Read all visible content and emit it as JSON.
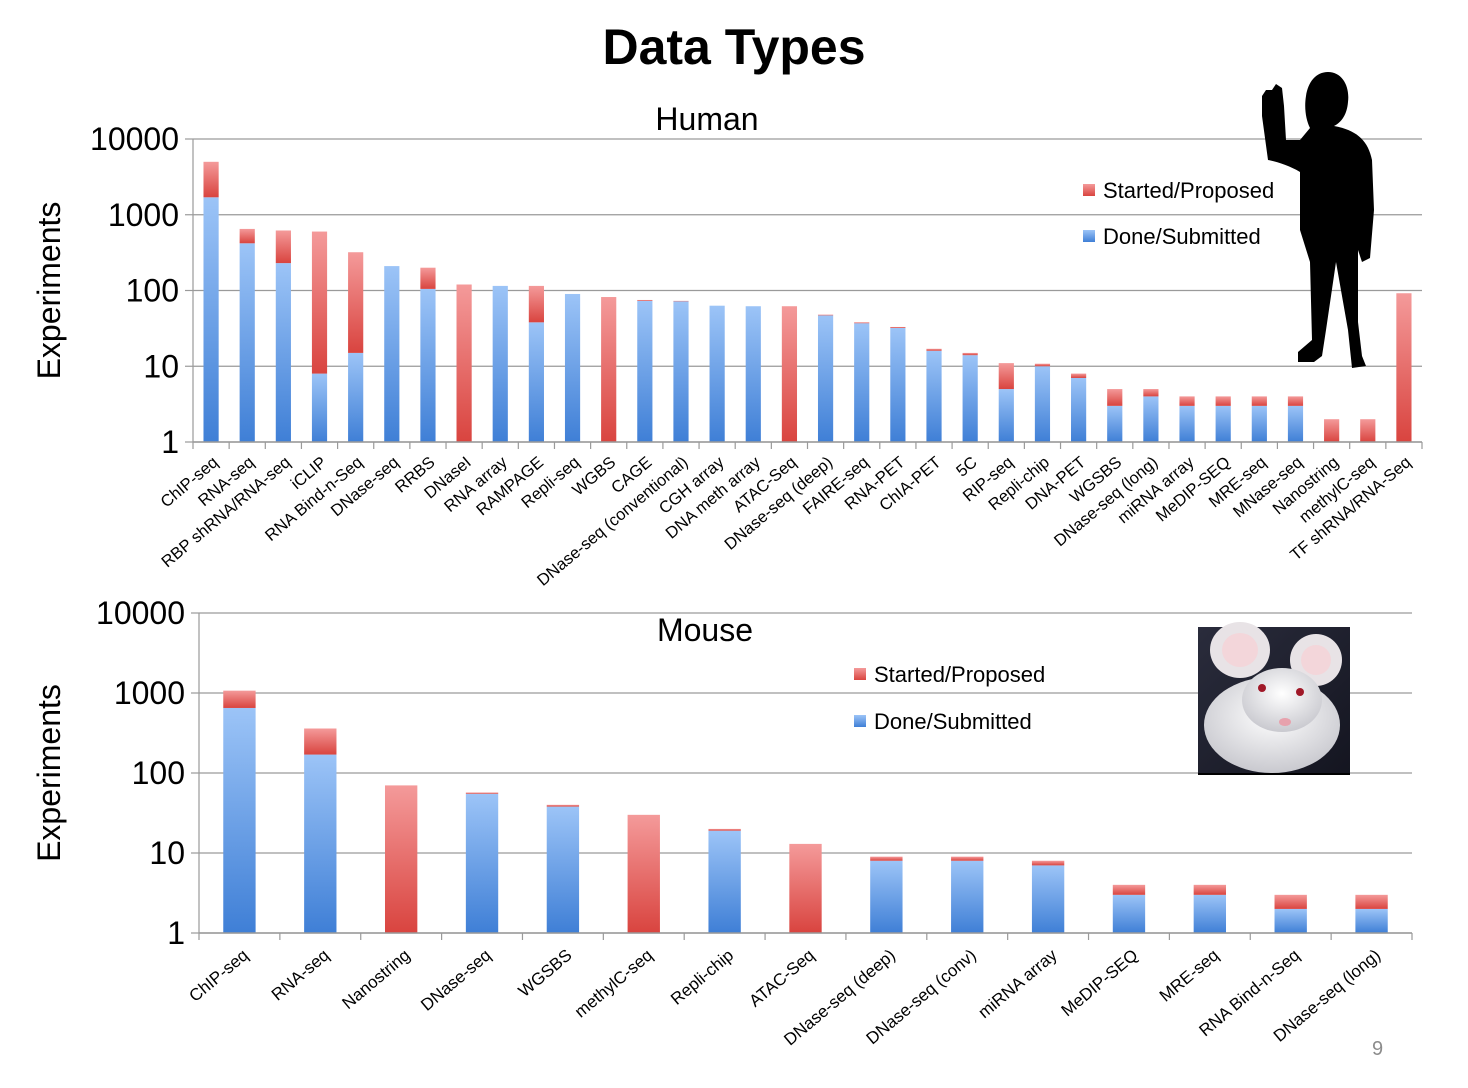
{
  "page": {
    "title": "Data Types",
    "page_number": "9",
    "colors": {
      "started": "#d9443f",
      "started_light": "#f49a9a",
      "done": "#3f7fd6",
      "done_light": "#9cc4f7",
      "grid": "#9a9a9a"
    }
  },
  "chart_data": [
    {
      "type": "bar",
      "stacked": true,
      "title": "Human",
      "xlabel": "",
      "ylabel": "Experiments",
      "yscale": "log",
      "ylim": [
        1,
        10000
      ],
      "ytick_labels": [
        "1",
        "10",
        "100",
        "1000",
        "10000"
      ],
      "ytick_values": [
        1,
        10,
        100,
        1000,
        10000
      ],
      "legend_position": "top-right",
      "grid": true,
      "categories": [
        "ChIP-seq",
        "RNA-seq",
        "RBP shRNA/RNA-seq",
        "iCLIP",
        "RNA Bind-n-Seq",
        "DNase-seq",
        "RRBS",
        "DNaseI",
        "RNA array",
        "RAMPAGE",
        "Repli-seq",
        "WGBS",
        "CAGE",
        "DNase-seq (conventional)",
        "CGH array",
        "DNA meth array",
        "ATAC-Seq",
        "DNase-seq (deep)",
        "FAIRE-seq",
        "RNA-PET",
        "ChIA-PET",
        "5C",
        "RIP-seq",
        "Repli-chip",
        "DNA-PET",
        "WGSBS",
        "DNase-seq (long)",
        "miRNA array",
        "MeDIP-SEQ",
        "MRE-seq",
        "MNase-seq",
        "Nanostring",
        "methylC-seq",
        "TF shRNA/RNA-Seq"
      ],
      "series": [
        {
          "name": "Done/Submitted",
          "values": [
            1700,
            420,
            230,
            8,
            15,
            210,
            105,
            0,
            115,
            38,
            90,
            0,
            73,
            72,
            63,
            62,
            0,
            47,
            37,
            32,
            16,
            14,
            5,
            10,
            7,
            3,
            4,
            3,
            3,
            3,
            3,
            0,
            0,
            0
          ]
        },
        {
          "name": "Started/Proposed",
          "values": [
            3300,
            230,
            390,
            592,
            305,
            0,
            95,
            120,
            0,
            77,
            0,
            82,
            2,
            1,
            0,
            0,
            62,
            1,
            1,
            1,
            1,
            1,
            6,
            0.8,
            1,
            2,
            1,
            1,
            1,
            1,
            1,
            2,
            2,
            92
          ]
        }
      ]
    },
    {
      "type": "bar",
      "stacked": true,
      "title": "Mouse",
      "xlabel": "",
      "ylabel": "Experiments",
      "yscale": "log",
      "ylim": [
        1,
        10000
      ],
      "ytick_labels": [
        "1",
        "10",
        "100",
        "1000",
        "10000"
      ],
      "ytick_values": [
        1,
        10,
        100,
        1000,
        10000
      ],
      "legend_position": "top-right",
      "grid": true,
      "categories": [
        "ChIP-seq",
        "RNA-seq",
        "Nanostring",
        "DNase-seq",
        "WGSBS",
        "methylC-seq",
        "Repli-chip",
        "ATAC-Seq",
        "DNase-seq (deep)",
        "DNase-seq (conv)",
        "miRNA array",
        "MeDIP-SEQ",
        "MRE-seq",
        "RNA Bind-n-Seq",
        "DNase-seq (long)"
      ],
      "series": [
        {
          "name": "Done/Submitted",
          "values": [
            650,
            170,
            0,
            55,
            38,
            0,
            19,
            0,
            8,
            8,
            7,
            3,
            3,
            2,
            2
          ]
        },
        {
          "name": "Started/Proposed",
          "values": [
            420,
            190,
            70,
            2,
            2,
            30,
            1,
            13,
            1,
            1,
            1,
            1,
            1,
            1,
            1
          ]
        }
      ]
    }
  ],
  "images": {
    "human_silhouette": "human-silhouette-icon",
    "mouse_photo": "white-mouse-photo"
  }
}
